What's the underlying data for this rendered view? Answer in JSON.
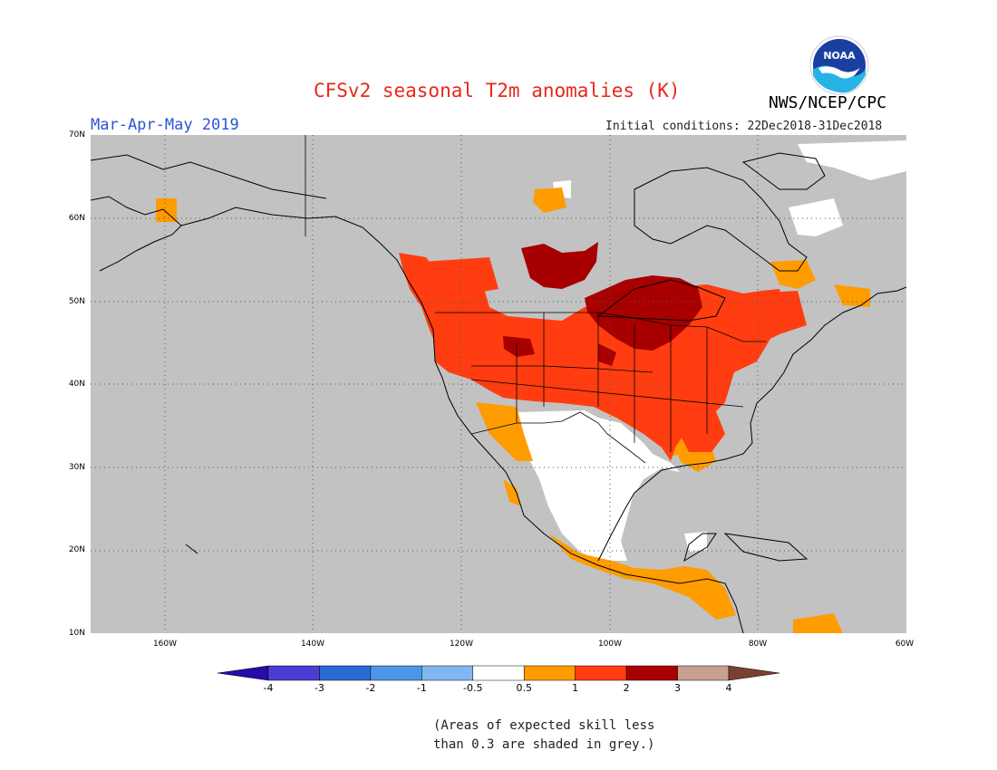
{
  "title": "CFSv2 seasonal T2m anomalies (K)",
  "agency": "NWS/NCEP/CPC",
  "logo_text": "NOAA",
  "season": "Mar-Apr-May 2019",
  "initial_conditions": "Initial conditions: 22Dec2018-31Dec2018",
  "lat_labels": [
    "70N",
    "60N",
    "50N",
    "40N",
    "30N",
    "20N",
    "10N"
  ],
  "lon_labels": [
    "160W",
    "140W",
    "120W",
    "100W",
    "80W",
    "60W"
  ],
  "colorbar": {
    "labels": [
      "-4",
      "-3",
      "-2",
      "-1",
      "-0.5",
      "0.5",
      "1",
      "2",
      "3",
      "4"
    ],
    "colors": [
      "#2a0aa8",
      "#4a3ed2",
      "#2a6ad4",
      "#4b96e8",
      "#7fb8f0",
      "#ffffff",
      "#ff9c00",
      "#ff3d10",
      "#a80000",
      "#c8a090",
      "#7a4030"
    ]
  },
  "note_line1": "(Areas of expected skill less",
  "note_line2": "than 0.3 are shaded in grey.)",
  "colors": {
    "grey_mask": "#c2c2c2",
    "white": "#ffffff",
    "orange": "#ff9c00",
    "red": "#ff3d10",
    "dark_red": "#a80000"
  }
}
